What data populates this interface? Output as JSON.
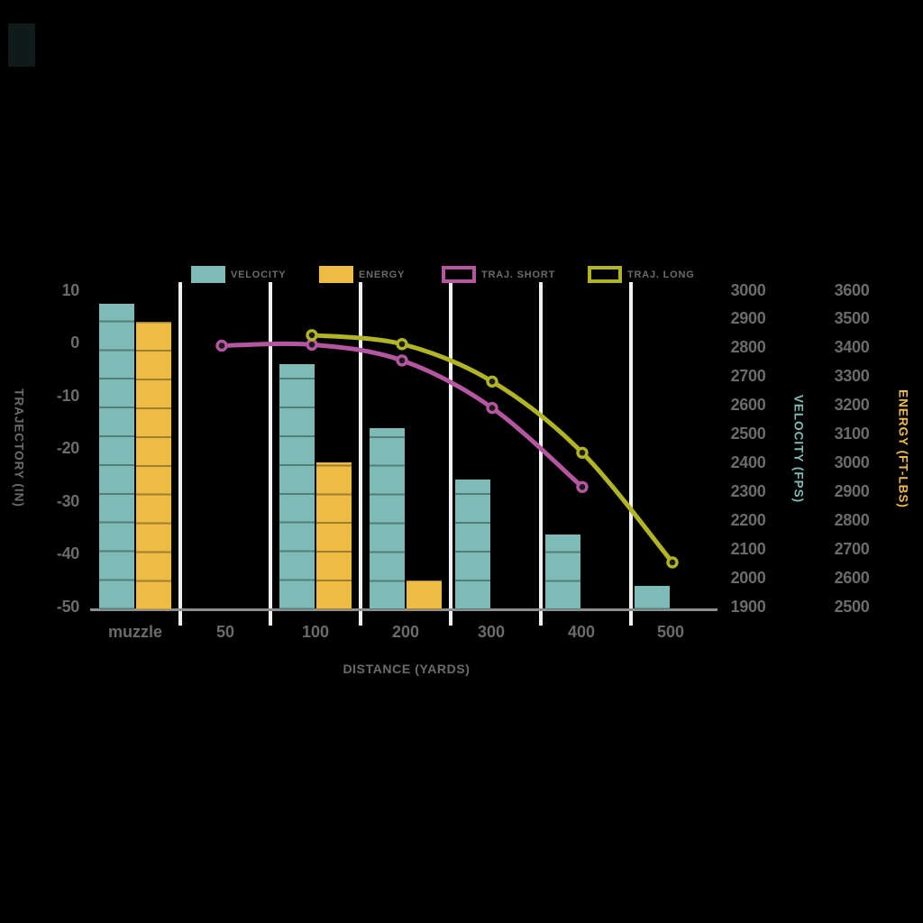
{
  "colors": {
    "background": "#000000",
    "velocity": "#7ebab6",
    "energy": "#eebc43",
    "traj_short": "#b456a0",
    "traj_long": "#b1b524",
    "axis_text": "#6b6b6b",
    "gridline": "#f0f0f0",
    "axis_line": "#8f8f8f",
    "marker_hole": "#1b1b1b"
  },
  "legend": [
    {
      "label": "VELOCITY",
      "swatch": "fill",
      "color": "#7ebab6"
    },
    {
      "label": "ENERGY",
      "swatch": "fill",
      "color": "#eebc43"
    },
    {
      "label": "TRAJ. SHORT",
      "swatch": "outline",
      "color": "#b456a0"
    },
    {
      "label": "TRAJ. LONG",
      "swatch": "outline",
      "color": "#b1b524"
    }
  ],
  "chart_data": {
    "type": "combo (grouped bars + smoothed lines, triple y-axis)",
    "categories": [
      "muzzle",
      "50",
      "100",
      "200",
      "300",
      "400",
      "500"
    ],
    "series": [
      {
        "name": "VELOCITY",
        "type": "bar",
        "axis": "velocity",
        "color": "#7ebab6",
        "values": [
          2950,
          null,
          2740,
          2520,
          2340,
          2150,
          1970
        ]
      },
      {
        "name": "ENERGY",
        "type": "bar",
        "axis": "energy",
        "color": "#eebc43",
        "values": [
          3490,
          null,
          3000,
          2590,
          null,
          null,
          null
        ]
      },
      {
        "name": "TRAJ. SHORT",
        "type": "line",
        "axis": "trajectory",
        "color": "#b456a0",
        "values": [
          null,
          -0.6,
          -0.4,
          -3.4,
          -12.4,
          -27.4,
          null
        ]
      },
      {
        "name": "TRAJ. LONG",
        "type": "line",
        "axis": "trajectory",
        "color": "#b1b524",
        "values": [
          null,
          null,
          1.4,
          -0.3,
          -7.4,
          -20.9,
          -41.7
        ]
      }
    ],
    "axes": {
      "x": {
        "label": "DISTANCE (YARDS)"
      },
      "trajectory": {
        "label": "TRAJECTORY (IN)",
        "min": -50,
        "max": 10,
        "ticks": [
          10,
          0,
          -10,
          -20,
          -30,
          -40,
          -50
        ]
      },
      "velocity": {
        "label": "VELOCITY (FPS)",
        "min": 1900,
        "max": 3000,
        "ticks": [
          3000,
          2900,
          2800,
          2700,
          2600,
          2500,
          2400,
          2300,
          2200,
          2100,
          2000,
          1900
        ]
      },
      "energy": {
        "label": "ENERGY (FT-LBS)",
        "min": 2500,
        "max": 3600,
        "ticks": [
          3600,
          3500,
          3400,
          3300,
          3200,
          3100,
          3000,
          2900,
          2800,
          2700,
          2600,
          2500
        ]
      }
    },
    "grid": {
      "vertical_separators": [
        "50",
        "100",
        "200",
        "300",
        "400",
        "500"
      ],
      "horizontal": "off",
      "legend_position": "top"
    }
  }
}
